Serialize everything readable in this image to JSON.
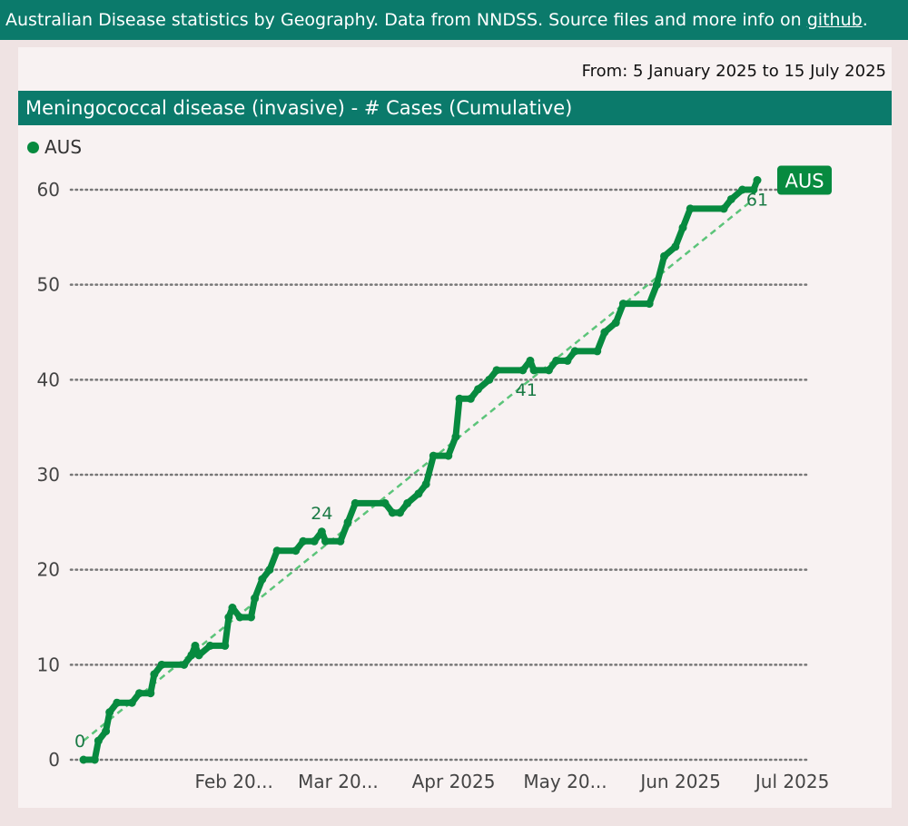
{
  "header": {
    "text_before_link": "Australian Disease statistics by Geography. Data from NNDSS. Source files and more info on ",
    "link_label": "github",
    "text_after_link": "."
  },
  "date_range": "From: 5 January 2025 to 15 July 2025",
  "colors": {
    "accent": "#0b7a6b",
    "series": "#078a3f",
    "trend": "#5cc47a"
  },
  "chart_data": {
    "type": "line",
    "title": "Meningococcal disease (invasive) - # Cases (Cumulative)",
    "legend": {
      "entries": [
        "AUS"
      ],
      "placement": "top-left"
    },
    "ylim": [
      0,
      62
    ],
    "yticks": [
      0,
      10,
      20,
      30,
      40,
      50,
      60
    ],
    "grid": "horizontal dotted",
    "xtick_labels": [
      "Feb 20...",
      "Mar 20...",
      "Apr 2025",
      "May 20...",
      "Jun 2025",
      "Jul 2025"
    ],
    "xtick_dates": [
      "2025-02-01",
      "2025-03-01",
      "2025-04-01",
      "2025-05-01",
      "2025-06-01",
      "2025-07-01"
    ],
    "x_range": [
      "2025-01-05",
      "2025-07-15"
    ],
    "series": [
      {
        "name": "AUS",
        "points": [
          [
            "2025-01-05",
            0
          ],
          [
            "2025-01-08",
            0
          ],
          [
            "2025-01-09",
            2
          ],
          [
            "2025-01-11",
            3
          ],
          [
            "2025-01-12",
            5
          ],
          [
            "2025-01-14",
            6
          ],
          [
            "2025-01-18",
            6
          ],
          [
            "2025-01-20",
            7
          ],
          [
            "2025-01-23",
            7
          ],
          [
            "2025-01-24",
            9
          ],
          [
            "2025-01-26",
            10
          ],
          [
            "2025-02-01",
            10
          ],
          [
            "2025-02-03",
            11
          ],
          [
            "2025-02-04",
            12
          ],
          [
            "2025-02-05",
            11
          ],
          [
            "2025-02-08",
            12
          ],
          [
            "2025-02-12",
            12
          ],
          [
            "2025-02-13",
            15
          ],
          [
            "2025-02-14",
            16
          ],
          [
            "2025-02-16",
            15
          ],
          [
            "2025-02-19",
            15
          ],
          [
            "2025-02-20",
            17
          ],
          [
            "2025-02-22",
            19
          ],
          [
            "2025-02-24",
            20
          ],
          [
            "2025-02-26",
            22
          ],
          [
            "2025-03-03",
            22
          ],
          [
            "2025-03-05",
            23
          ],
          [
            "2025-03-08",
            23
          ],
          [
            "2025-03-10",
            24
          ],
          [
            "2025-03-11",
            23
          ],
          [
            "2025-03-15",
            23
          ],
          [
            "2025-03-17",
            25
          ],
          [
            "2025-03-19",
            27
          ],
          [
            "2025-03-27",
            27
          ],
          [
            "2025-03-29",
            26
          ],
          [
            "2025-03-31",
            26
          ],
          [
            "2025-04-02",
            27
          ],
          [
            "2025-04-05",
            28
          ],
          [
            "2025-04-07",
            29
          ],
          [
            "2025-04-09",
            32
          ],
          [
            "2025-04-13",
            32
          ],
          [
            "2025-04-15",
            34
          ],
          [
            "2025-04-16",
            38
          ],
          [
            "2025-04-19",
            38
          ],
          [
            "2025-04-21",
            39
          ],
          [
            "2025-04-24",
            40
          ],
          [
            "2025-04-26",
            41
          ],
          [
            "2025-05-03",
            41
          ],
          [
            "2025-05-05",
            42
          ],
          [
            "2025-05-06",
            41
          ],
          [
            "2025-05-10",
            41
          ],
          [
            "2025-05-12",
            42
          ],
          [
            "2025-05-15",
            42
          ],
          [
            "2025-05-17",
            43
          ],
          [
            "2025-05-23",
            43
          ],
          [
            "2025-05-25",
            45
          ],
          [
            "2025-05-28",
            46
          ],
          [
            "2025-05-30",
            48
          ],
          [
            "2025-06-06",
            48
          ],
          [
            "2025-06-08",
            50
          ],
          [
            "2025-06-10",
            53
          ],
          [
            "2025-06-13",
            54
          ],
          [
            "2025-06-15",
            56
          ],
          [
            "2025-06-17",
            58
          ],
          [
            "2025-06-26",
            58
          ],
          [
            "2025-06-28",
            59
          ],
          [
            "2025-07-01",
            60
          ],
          [
            "2025-07-04",
            60
          ],
          [
            "2025-07-05",
            61
          ]
        ]
      },
      {
        "name": "trend",
        "style": "dashed",
        "points": [
          [
            "2025-01-05",
            2
          ],
          [
            "2025-07-04",
            59
          ]
        ]
      }
    ],
    "point_labels": [
      {
        "date": "2025-01-05",
        "value": 0,
        "text": "0"
      },
      {
        "date": "2025-03-10",
        "value": 24,
        "text": "24"
      },
      {
        "date": "2025-05-03",
        "value": 41,
        "text": "41"
      },
      {
        "date": "2025-07-05",
        "value": 61,
        "text": "61"
      }
    ],
    "end_label": "AUS"
  }
}
